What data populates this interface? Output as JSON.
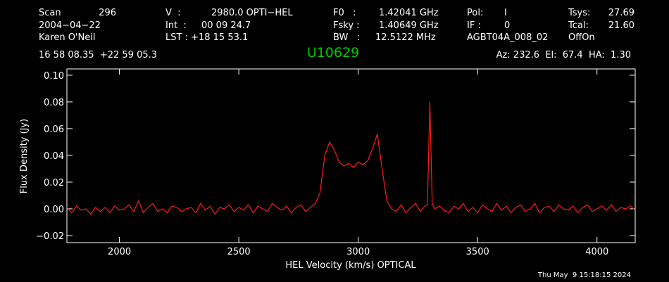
{
  "chart_data": {
    "type": "line",
    "title": "U10629",
    "title_color": "#00c800",
    "xlabel": "HEL Velocity (km/s) OPTICAL",
    "ylabel": "Flux Density (Jy)",
    "annotations": [
      "Scan",
      "296",
      "V  :",
      "2980.0 OPTI−HEL",
      "F0   :",
      "1.42041 GHz",
      "Pol:",
      "I",
      "Tsys:",
      "27.69",
      "2004−04−22",
      "Int  :",
      "00 09 24.7",
      "Fsky :",
      "1.40649 GHz",
      "IF :",
      "0",
      "Tcal:",
      "21.60",
      "Karen O'Neil",
      "LST : +18 15 53.1",
      "BW   :",
      "12.5122 MHz",
      "AGBT04A_008_02",
      "OffOn",
      "16 58 08.35  +22 59 05.3",
      "Az: 232.6  El:  67.4  HA:  1.30",
      "Thu May  9 15:18:15 2024"
    ],
    "xlim": [
      1780,
      4160
    ],
    "ylim": [
      -0.0253,
      0.1047
    ],
    "xticks": [
      2000,
      2500,
      3000,
      3500,
      4000
    ],
    "yticks": [
      {
        "value": 0.1,
        "label": "0.10"
      },
      0.08,
      0.06,
      0.04,
      0.02,
      {
        "value": 0,
        "label": "0.00"
      },
      {
        "value": -0.02,
        "label": "−0.02"
      }
    ],
    "series": [
      {
        "name": "U10629",
        "color": "#ff1a1a",
        "x": [
          1780,
          1800,
          1820,
          1840,
          1860,
          1880,
          1900,
          1920,
          1940,
          1960,
          1980,
          2000,
          2020,
          2040,
          2060,
          2080,
          2100,
          2120,
          2140,
          2160,
          2180,
          2200,
          2220,
          2240,
          2260,
          2280,
          2300,
          2320,
          2340,
          2360,
          2380,
          2400,
          2420,
          2440,
          2460,
          2480,
          2500,
          2520,
          2540,
          2560,
          2580,
          2600,
          2620,
          2640,
          2660,
          2680,
          2700,
          2720,
          2740,
          2760,
          2780,
          2800,
          2820,
          2840,
          2860,
          2880,
          2900,
          2920,
          2940,
          2960,
          2980,
          3000,
          3020,
          3040,
          3060,
          3080,
          3100,
          3120,
          3140,
          3160,
          3180,
          3200,
          3220,
          3240,
          3260,
          3280,
          3290,
          3300,
          3310,
          3320,
          3340,
          3360,
          3380,
          3400,
          3420,
          3440,
          3460,
          3480,
          3500,
          3520,
          3540,
          3560,
          3580,
          3600,
          3620,
          3640,
          3660,
          3680,
          3700,
          3720,
          3740,
          3760,
          3780,
          3800,
          3820,
          3840,
          3860,
          3880,
          3900,
          3920,
          3940,
          3960,
          3980,
          4000,
          4020,
          4040,
          4060,
          4080,
          4100,
          4120,
          4140,
          4160
        ],
        "values": [
          0.001,
          -0.003,
          0.002,
          -0.001,
          0.0,
          -0.004,
          0.001,
          -0.002,
          0.001,
          -0.003,
          0.002,
          -0.001,
          0.0,
          0.003,
          -0.002,
          0.006,
          -0.003,
          0.001,
          0.004,
          -0.002,
          0.0,
          -0.003,
          0.002,
          0.001,
          -0.002,
          0.0,
          0.001,
          -0.003,
          0.004,
          -0.001,
          0.002,
          -0.004,
          0.001,
          0.0,
          0.003,
          -0.002,
          0.001,
          -0.001,
          0.003,
          -0.003,
          0.002,
          0.0,
          -0.002,
          0.004,
          0.001,
          -0.001,
          0.002,
          -0.003,
          0.001,
          0.003,
          -0.002,
          0.001,
          0.004,
          0.012,
          0.04,
          0.05,
          0.044,
          0.035,
          0.032,
          0.034,
          0.031,
          0.035,
          0.033,
          0.036,
          0.045,
          0.056,
          0.03,
          0.006,
          0.0,
          -0.002,
          0.003,
          -0.003,
          0.001,
          0.004,
          -0.002,
          0.002,
          0.003,
          0.08,
          0.004,
          0.0,
          0.002,
          -0.001,
          -0.003,
          0.002,
          0.0,
          0.004,
          -0.002,
          0.001,
          -0.003,
          0.003,
          0.0,
          -0.002,
          0.004,
          -0.001,
          0.002,
          -0.003,
          0.001,
          0.003,
          -0.002,
          0.0,
          0.004,
          -0.003,
          0.001,
          0.002,
          -0.002,
          0.003,
          0.0,
          -0.001,
          0.002,
          -0.003,
          0.001,
          0.003,
          -0.002,
          0.0,
          0.002,
          -0.001,
          0.003,
          -0.002,
          0.001,
          0.0,
          0.002,
          -0.001
        ]
      }
    ]
  }
}
